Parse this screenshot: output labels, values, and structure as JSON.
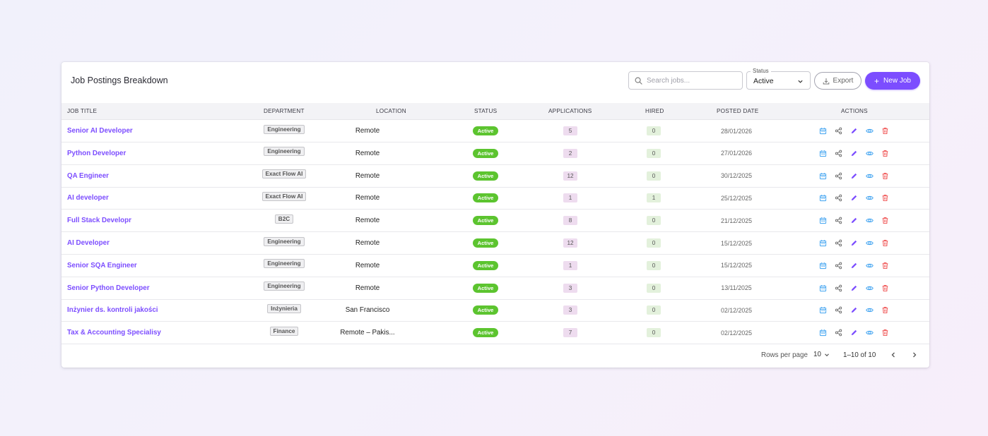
{
  "card": {
    "title": "Job Postings Breakdown"
  },
  "toolbar": {
    "search_placeholder": "Search jobs...",
    "status_legend": "Status",
    "status_value": "Active",
    "export_label": "Export",
    "new_job_label": "New Job"
  },
  "columns": [
    "JOB TITLE",
    "DEPARTMENT",
    "LOCATION",
    "STATUS",
    "APPLICATIONS",
    "HIRED",
    "POSTED DATE",
    "ACTIONS"
  ],
  "rows": [
    {
      "title": "Senior AI Developer",
      "department": "Engineering",
      "location": "Remote",
      "status": "Active",
      "applications": "5",
      "hired": "0",
      "posted": "28/01/2026"
    },
    {
      "title": "Python Developer",
      "department": "Engineering",
      "location": "Remote",
      "status": "Active",
      "applications": "2",
      "hired": "0",
      "posted": "27/01/2026"
    },
    {
      "title": "QA Engineer",
      "department": "Exact Flow AI",
      "location": "Remote",
      "status": "Active",
      "applications": "12",
      "hired": "0",
      "posted": "30/12/2025"
    },
    {
      "title": "AI developer",
      "department": "Exact Flow AI",
      "location": "Remote",
      "status": "Active",
      "applications": "1",
      "hired": "1",
      "posted": "25/12/2025"
    },
    {
      "title": "Full Stack Developr",
      "department": "B2C",
      "location": "Remote",
      "status": "Active",
      "applications": "8",
      "hired": "0",
      "posted": "21/12/2025"
    },
    {
      "title": "AI Developer",
      "department": "Engineering",
      "location": "Remote",
      "status": "Active",
      "applications": "12",
      "hired": "0",
      "posted": "15/12/2025"
    },
    {
      "title": "Senior SQA Engineer",
      "department": "Engineering",
      "location": "Remote",
      "status": "Active",
      "applications": "1",
      "hired": "0",
      "posted": "15/12/2025"
    },
    {
      "title": "Senior Python Developer",
      "department": "Engineering",
      "location": "Remote",
      "status": "Active",
      "applications": "3",
      "hired": "0",
      "posted": "13/11/2025"
    },
    {
      "title": "Inżynier ds. kontroli jakości",
      "department": "Inżynieria",
      "location": "San Francisco",
      "status": "Active",
      "applications": "3",
      "hired": "0",
      "posted": "02/12/2025"
    },
    {
      "title": "Tax & Accounting Specialisy",
      "department": "Finance",
      "location": "Remote – Pakis...",
      "status": "Active",
      "applications": "7",
      "hired": "0",
      "posted": "02/12/2025"
    }
  ],
  "row_actions": [
    "calendar-icon",
    "share-icon",
    "edit-icon",
    "view-icon",
    "delete-icon"
  ],
  "pagination": {
    "rows_per_page_label": "Rows per page",
    "rows_per_page_value": "10",
    "range": "1–10 of 10"
  },
  "colors": {
    "accent": "#7c4dff",
    "status_active": "#5cc42f",
    "action_blue": "#3aa0f0",
    "action_purple": "#7c4dff",
    "action_red": "#ef4b4b"
  }
}
